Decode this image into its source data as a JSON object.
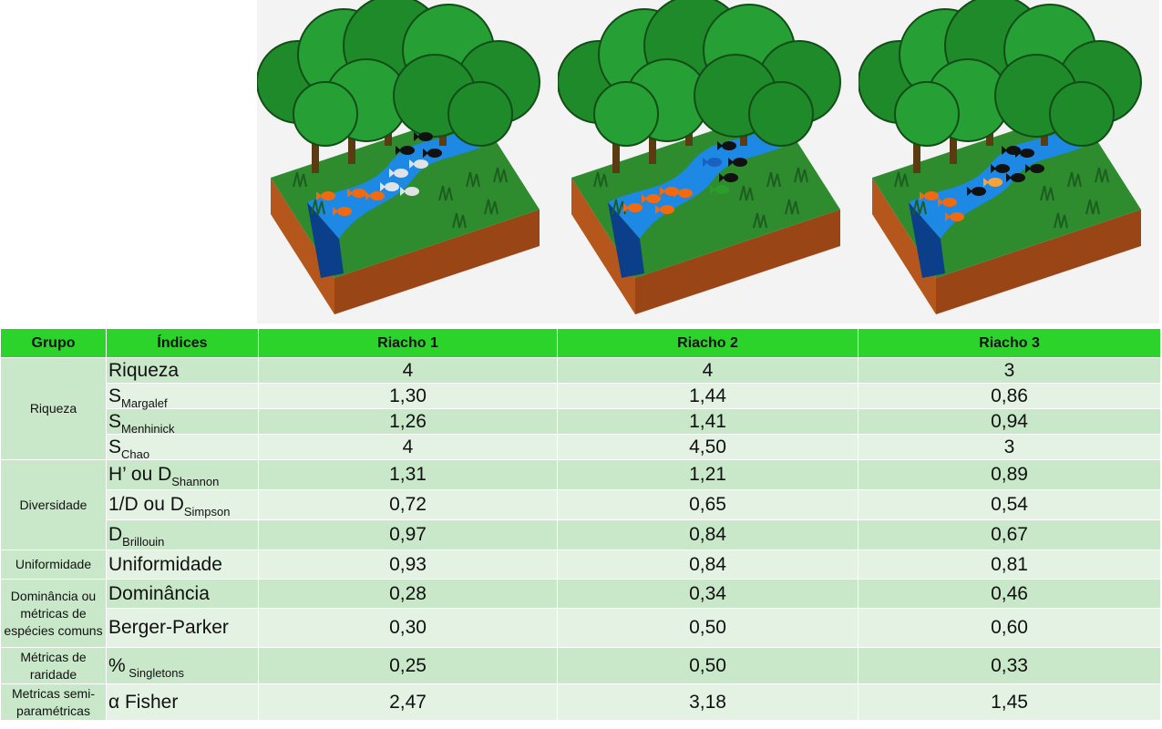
{
  "table": {
    "headers": [
      "Grupo",
      "Índices",
      "Riacho 1",
      "Riacho 2",
      "Riacho 3"
    ],
    "groups": [
      "Riqueza",
      "Diversidade",
      "Uniformidade",
      "Dominância ou métricas de espécies comuns",
      "Métricas de raridade",
      "Metricas semi-paramétricas"
    ],
    "rows": [
      {
        "main": "Riqueza",
        "sub": "",
        "values": [
          "4",
          "4",
          "3"
        ]
      },
      {
        "main": "S",
        "sub": "Margalef",
        "values": [
          "1,30",
          "1,44",
          "0,86"
        ]
      },
      {
        "main": "S",
        "sub": "Menhinick",
        "values": [
          "1,26",
          "1,41",
          "0,94"
        ]
      },
      {
        "main": "S",
        "sub": "Chao",
        "values": [
          "4",
          "4,50",
          "3"
        ]
      },
      {
        "main": "H’ ou D",
        "sub": "Shannon",
        "values": [
          "1,31",
          "1,21",
          "0,89"
        ]
      },
      {
        "main": "1/D ou D",
        "sub": "Simpson",
        "values": [
          "0,72",
          "0,65",
          "0,54"
        ]
      },
      {
        "main": "D",
        "sub": "Brillouin",
        "values": [
          "0,97",
          "0,84",
          "0,67"
        ]
      },
      {
        "main": "Uniformidade",
        "sub": "",
        "values": [
          "0,93",
          "0,84",
          "0,81"
        ]
      },
      {
        "main": "Dominância",
        "sub": "",
        "values": [
          "0,28",
          "0,34",
          "0,46"
        ]
      },
      {
        "main": "Berger-Parker",
        "sub": "",
        "values": [
          "0,30",
          "0,50",
          "0,60"
        ]
      },
      {
        "main": "%",
        "sub": " Singletons",
        "values": [
          "0,25",
          "0,50",
          "0,33"
        ]
      },
      {
        "main": "α Fisher",
        "sub": "",
        "values": [
          "2,47",
          "3,18",
          "1,45"
        ]
      }
    ]
  },
  "illustrations": [
    {
      "fish_colors": [
        "#f26a10",
        "#f26a10",
        "#f26a10",
        "#f26a10",
        "#dfe3e6",
        "#dfe3e6",
        "#dfe3e6",
        "#dfe3e6",
        "#111111",
        "#111111",
        "#111111"
      ]
    },
    {
      "fish_colors": [
        "#f26a10",
        "#f26a10",
        "#f26a10",
        "#f26a10",
        "#f26a10",
        "#2a9d2a",
        "#1a60c0",
        "#111111",
        "#111111",
        "#111111"
      ]
    },
    {
      "fish_colors": [
        "#f26a10",
        "#f26a10",
        "#f26a10",
        "#f9a23a",
        "#111111",
        "#111111",
        "#111111",
        "#111111",
        "#111111",
        "#111111"
      ]
    }
  ],
  "colors": {
    "header_green": "#2bd32b",
    "row_dark": "#c9e8c9",
    "row_light": "#e3f2e3",
    "water": "#1e88e5",
    "soil": "#b5561c",
    "grass": "#2e8b2e",
    "canopy": "#1f8a2a"
  }
}
